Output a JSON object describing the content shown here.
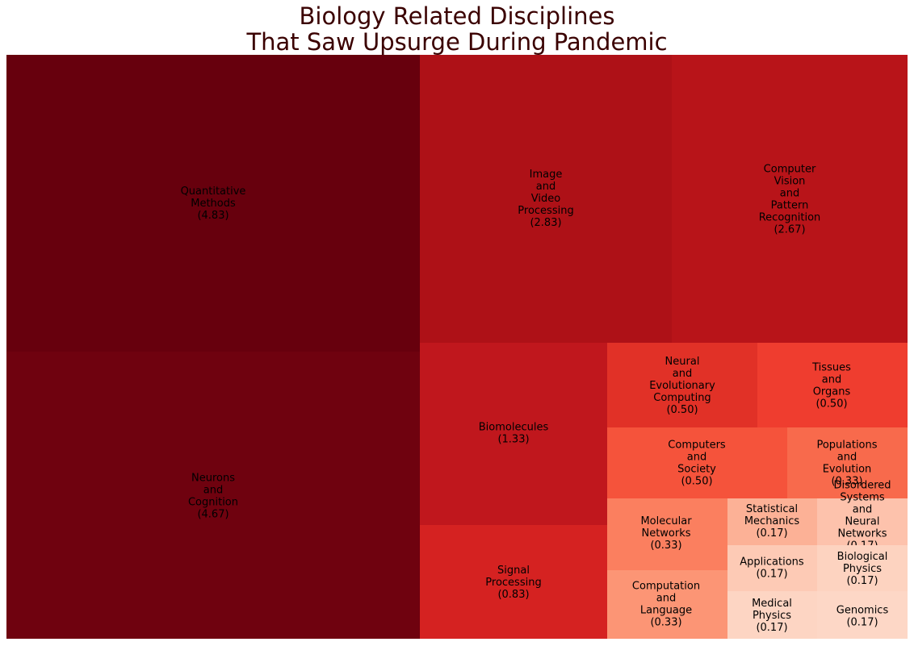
{
  "chart_data": {
    "type": "treemap",
    "title": [
      "Biology Related Disciplines",
      "That Saw Upsurge During Pandemic"
    ],
    "label_format": "{label}\n({value})",
    "items": [
      {
        "label": "Quantitative Methods",
        "value": "4.83",
        "num": 4.83,
        "color": "#67000d"
      },
      {
        "label": "Neurons and Cognition",
        "value": "4.67",
        "num": 4.67,
        "color": "#6f020f"
      },
      {
        "label": "Image and Video Processing",
        "value": "2.83",
        "num": 2.83,
        "color": "#ae1117"
      },
      {
        "label": "Computer Vision and Pattern Recognition",
        "value": "2.67",
        "num": 2.67,
        "color": "#b81419"
      },
      {
        "label": "Biomolecules",
        "value": "1.33",
        "num": 1.33,
        "color": "#c0171d"
      },
      {
        "label": "Signal Processing",
        "value": "0.83",
        "num": 0.83,
        "color": "#d52221"
      },
      {
        "label": "Neural and Evolutionary Computing",
        "value": "0.50",
        "num": 0.5,
        "color": "#e13127"
      },
      {
        "label": "Tissues and Organs",
        "value": "0.50",
        "num": 0.5,
        "color": "#ef3d2f"
      },
      {
        "label": "Computers and Society",
        "value": "0.50",
        "num": 0.5,
        "color": "#f5533b"
      },
      {
        "label": "Populations and Evolution",
        "value": "0.33",
        "num": 0.33,
        "color": "#f86a4c"
      },
      {
        "label": "Molecular Networks",
        "value": "0.33",
        "num": 0.33,
        "color": "#fb7f5f"
      },
      {
        "label": "Computation and Language",
        "value": "0.33",
        "num": 0.33,
        "color": "#fc9575"
      },
      {
        "label": "Statistical Mechanics",
        "value": "0.17",
        "num": 0.17,
        "color": "#fcb196"
      },
      {
        "label": "Disordered Systems and Neural Networks",
        "value": "0.17",
        "num": 0.17,
        "color": "#fdc2ac"
      },
      {
        "label": "Applications",
        "value": "0.17",
        "num": 0.17,
        "color": "#fdcab5"
      },
      {
        "label": "Biological Physics",
        "value": "0.17",
        "num": 0.17,
        "color": "#fdd3c0"
      },
      {
        "label": "Medical Physics",
        "value": "0.17",
        "num": 0.17,
        "color": "#fdd5c3"
      },
      {
        "label": "Genomics",
        "value": "0.17",
        "num": 0.17,
        "color": "#fdd7c6"
      }
    ]
  }
}
